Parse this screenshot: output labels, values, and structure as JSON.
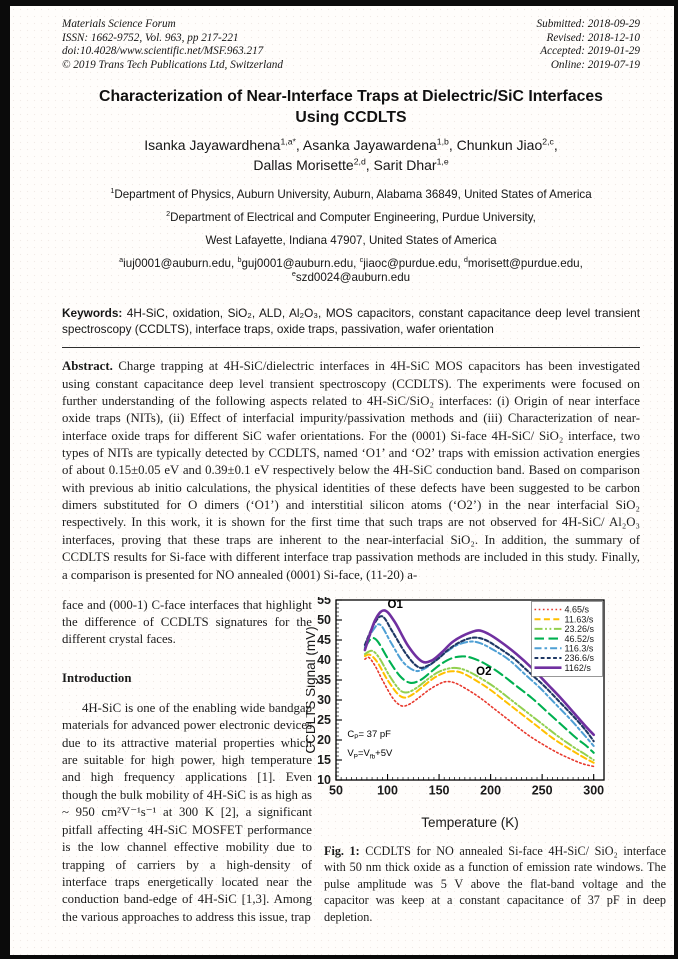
{
  "header": {
    "left_lines": [
      "Materials Science Forum",
      "ISSN: 1662-9752, Vol. 963, pp 217-221",
      "doi:10.4028/www.scientific.net/MSF.963.217",
      "© 2019 Trans Tech Publications Ltd, Switzerland"
    ],
    "right_lines": [
      "Submitted: 2018-09-29",
      "Revised: 2018-12-10",
      "Accepted: 2019-01-29",
      "Online: 2019-07-19"
    ]
  },
  "title_line1": "Characterization of Near-Interface Traps at Dielectric/SiC Interfaces",
  "title_line2": "Using CCDLTS",
  "authors_line1": [
    {
      "t": "Isanka Jayawardhena"
    },
    {
      "s": "1,a*"
    },
    {
      "t": ", Asanka Jayawardena"
    },
    {
      "s": "1,b"
    },
    {
      "t": ", Chunkun Jiao"
    },
    {
      "s": "2,c"
    },
    {
      "t": ","
    }
  ],
  "authors_line2": [
    {
      "t": "Dallas Morisette"
    },
    {
      "s": "2,d"
    },
    {
      "t": ", Sarit Dhar"
    },
    {
      "s": "1,e"
    }
  ],
  "affiliations": {
    "line1": [
      {
        "s": "1"
      },
      {
        "t": "Department of Physics, Auburn University, Auburn, Alabama 36849, United States of America"
      }
    ],
    "line2": [
      {
        "s": "2"
      },
      {
        "t": "Department of Electrical and Computer Engineering, Purdue University,"
      }
    ],
    "line3": [
      {
        "t": "West Lafayette, Indiana 47907, United States of America"
      }
    ]
  },
  "emails_line1": [
    {
      "s": "a"
    },
    {
      "t": "iuj0001@auburn.edu, "
    },
    {
      "s": "b"
    },
    {
      "t": "guj0001@auburn.edu, "
    },
    {
      "s": "c"
    },
    {
      "t": "jiaoc@purdue.edu, "
    },
    {
      "s": "d"
    },
    {
      "t": "morisett@purdue.edu,"
    }
  ],
  "emails_line2": [
    {
      "s": "e"
    },
    {
      "t": "szd0024@auburn.edu"
    }
  ],
  "keywords": {
    "label": "Keywords:",
    "text": " 4H-SiC, oxidation, SiO₂, ALD, Al₂O₃, MOS capacitors, constant capacitance deep level transient spectroscopy (CCDLTS), interface traps, oxide traps, passivation, wafer orientation"
  },
  "abstract": {
    "label": "Abstract.",
    "text": " Charge trapping at 4H-SiC/dielectric interfaces in 4H-SiC MOS capacitors has been investigated using constant capacitance deep level transient spectroscopy (CCDLTS). The experiments were focused on further understanding of the following aspects related to 4H-SiC/SiO₂ interfaces: (i) Origin of near interface oxide traps (NITs), (ii) Effect of interfacial impurity/passivation methods and (iii) Characterization of near-interface oxide traps for different SiC wafer orientations. For the (0001) Si-face 4H-SiC/ SiO₂ interface, two types of NITs are typically detected by CCDLTS, named ‘O1’ and ‘O2’ traps with emission activation energies of about 0.15±0.05 eV and 0.39±0.1 eV respectively below the 4H-SiC conduction band. Based on comparison with previous ab initio calculations, the physical identities of these defects have been suggested to be carbon dimers substituted for O dimers (‘O1’) and interstitial silicon atoms (‘O2’) in the near interfacial SiO₂ respectively. In this work, it is shown for the first time that such traps are not observed for 4H-SiC/ Al₂O₃ interfaces, proving that these traps are inherent to the near-interfacial SiO₂. In addition, the summary of CCDLTS results for Si-face with different interface trap passivation methods are included in this study. Finally, a comparison is presented for NO annealed (0001) Si-face, (11-20) a-"
  },
  "left_column": {
    "continuation": "face and (000-1) C-face interfaces that highlight the difference of CCDLTS signatures for the different crystal faces.",
    "intro_heading": "Introduction",
    "intro_paragraph": "4H-SiC is one of the enabling wide bandgap materials for advanced power electronic devices due to its attractive material properties which are suitable for high power, high temperature and high frequency applications [1]. Even though the bulk mobility of 4H-SiC is as high as ~ 950 cm²V⁻¹s⁻¹ at 300 K [2], a significant pitfall affecting 4H-SiC MOSFET performance is the low channel effective mobility due to trapping of carriers by a high-density of interface traps energetically located near the conduction band-edge of 4H-SiC [1,3]. Among the various approaches to address this issue, trap"
  },
  "figure_caption": {
    "label": "Fig. 1:",
    "text": " CCDLTS for NO annealed Si-face 4H-SiC/ SiO₂ interface with 50 nm thick oxide as a function of emission rate windows. The pulse amplitude was 5 V above the flat-band voltage and the capacitor was keep at a constant capacitance of 37 pF in deep depletion."
  },
  "chart_data": {
    "type": "line",
    "xlabel": "Temperature (K)",
    "ylabel": "CCDLTS Signal (mV)",
    "xlim": [
      50,
      310
    ],
    "ylim": [
      10,
      55
    ],
    "x_major_ticks": [
      50,
      100,
      150,
      200,
      250,
      300
    ],
    "y_major_ticks": [
      10,
      15,
      20,
      25,
      30,
      35,
      40,
      45,
      50,
      55
    ],
    "x_minor_step": 5,
    "y_minor_step": 1,
    "grid": false,
    "legend_position": "top-right",
    "annotations": [
      {
        "label": "O1",
        "T": 100,
        "mV": 53.0,
        "bold": true
      },
      {
        "label": "O2",
        "T": 186,
        "mV": 36.2,
        "bold": true
      },
      {
        "T": 61,
        "mV": 20.8,
        "segments": [
          {
            "t": "C"
          },
          {
            "sub": "P"
          },
          {
            "t": "= 37 pF"
          }
        ]
      },
      {
        "T": 61,
        "mV": 16.0,
        "segments": [
          {
            "t": "V"
          },
          {
            "sub": "P"
          },
          {
            "t": "=V"
          },
          {
            "sub": "fb"
          },
          {
            "t": "+5V"
          }
        ]
      }
    ],
    "series": [
      {
        "name": "4.65/s",
        "color": "#E8392D",
        "style": "dotted",
        "width": 1.6,
        "points": [
          [
            78,
            40.2
          ],
          [
            82,
            40.6
          ],
          [
            88,
            38.5
          ],
          [
            95,
            35.0
          ],
          [
            105,
            30.5
          ],
          [
            113,
            28.6
          ],
          [
            120,
            28.8
          ],
          [
            130,
            30.5
          ],
          [
            140,
            32.5
          ],
          [
            150,
            34.0
          ],
          [
            157,
            34.6
          ],
          [
            165,
            34.3
          ],
          [
            175,
            33.0
          ],
          [
            190,
            30.5
          ],
          [
            205,
            27.5
          ],
          [
            220,
            24.5
          ],
          [
            235,
            21.5
          ],
          [
            250,
            19.0
          ],
          [
            265,
            16.8
          ],
          [
            280,
            15.0
          ],
          [
            290,
            14.0
          ],
          [
            300,
            13.4
          ]
        ]
      },
      {
        "name": "11.63/s",
        "color": "#FFC000",
        "style": "dash-med",
        "width": 2.0,
        "points": [
          [
            78,
            41.0
          ],
          [
            83,
            41.3
          ],
          [
            90,
            39.5
          ],
          [
            100,
            35.0
          ],
          [
            110,
            31.5
          ],
          [
            117,
            30.6
          ],
          [
            125,
            31.5
          ],
          [
            135,
            33.5
          ],
          [
            145,
            35.5
          ],
          [
            155,
            36.8
          ],
          [
            163,
            37.2
          ],
          [
            172,
            36.8
          ],
          [
            185,
            35.0
          ],
          [
            200,
            32.5
          ],
          [
            215,
            29.5
          ],
          [
            230,
            26.5
          ],
          [
            245,
            23.5
          ],
          [
            260,
            20.5
          ],
          [
            275,
            18.0
          ],
          [
            288,
            16.0
          ],
          [
            300,
            14.3
          ]
        ]
      },
      {
        "name": "23.26/s",
        "color": "#92D050",
        "style": "dash-dot-dot",
        "width": 2.0,
        "points": [
          [
            78,
            41.5
          ],
          [
            85,
            42.3
          ],
          [
            92,
            40.5
          ],
          [
            102,
            36.0
          ],
          [
            112,
            32.5
          ],
          [
            119,
            31.9
          ],
          [
            128,
            33.0
          ],
          [
            138,
            35.0
          ],
          [
            148,
            36.8
          ],
          [
            158,
            37.8
          ],
          [
            167,
            38.0
          ],
          [
            177,
            37.3
          ],
          [
            190,
            35.5
          ],
          [
            205,
            33.0
          ],
          [
            220,
            30.0
          ],
          [
            235,
            27.0
          ],
          [
            250,
            24.0
          ],
          [
            265,
            21.0
          ],
          [
            280,
            18.3
          ],
          [
            290,
            16.7
          ],
          [
            300,
            15.0
          ]
        ]
      },
      {
        "name": "46.52/s",
        "color": "#00B050",
        "style": "dash-long",
        "width": 2.1,
        "points": [
          [
            78,
            43.0
          ],
          [
            84,
            45.3
          ],
          [
            90,
            44.8
          ],
          [
            100,
            40.5
          ],
          [
            112,
            36.0
          ],
          [
            122,
            34.3
          ],
          [
            132,
            35.0
          ],
          [
            142,
            37.0
          ],
          [
            152,
            39.0
          ],
          [
            162,
            40.4
          ],
          [
            172,
            40.9
          ],
          [
            182,
            40.5
          ],
          [
            195,
            39.0
          ],
          [
            210,
            36.5
          ],
          [
            225,
            33.5
          ],
          [
            240,
            30.5
          ],
          [
            255,
            27.0
          ],
          [
            270,
            23.5
          ],
          [
            283,
            20.5
          ],
          [
            293,
            18.5
          ],
          [
            300,
            16.8
          ]
        ]
      },
      {
        "name": "116.3/s",
        "color": "#4E9FD4",
        "style": "dash-dot",
        "width": 2.0,
        "points": [
          [
            78,
            43.5
          ],
          [
            86,
            47.5
          ],
          [
            93,
            48.8
          ],
          [
            103,
            44.5
          ],
          [
            115,
            39.5
          ],
          [
            127,
            37.3
          ],
          [
            137,
            38.0
          ],
          [
            147,
            40.0
          ],
          [
            157,
            42.0
          ],
          [
            168,
            43.8
          ],
          [
            180,
            44.6
          ],
          [
            190,
            44.2
          ],
          [
            203,
            42.5
          ],
          [
            218,
            40.0
          ],
          [
            233,
            36.5
          ],
          [
            248,
            33.0
          ],
          [
            263,
            29.0
          ],
          [
            278,
            25.0
          ],
          [
            290,
            21.5
          ],
          [
            300,
            18.5
          ]
        ]
      },
      {
        "name": "236.6/s",
        "color": "#1F3864",
        "style": "dash-short",
        "width": 2.1,
        "points": [
          [
            78,
            43.8
          ],
          [
            87,
            49.0
          ],
          [
            95,
            50.9
          ],
          [
            105,
            47.0
          ],
          [
            118,
            41.5
          ],
          [
            130,
            38.2
          ],
          [
            140,
            38.7
          ],
          [
            150,
            40.5
          ],
          [
            160,
            42.8
          ],
          [
            172,
            44.7
          ],
          [
            184,
            45.6
          ],
          [
            195,
            45.0
          ],
          [
            208,
            43.0
          ],
          [
            222,
            40.5
          ],
          [
            237,
            37.0
          ],
          [
            252,
            33.5
          ],
          [
            267,
            29.5
          ],
          [
            280,
            26.0
          ],
          [
            292,
            22.5
          ],
          [
            300,
            19.7
          ]
        ]
      },
      {
        "name": "1162/s",
        "color": "#7030A0",
        "style": "solid",
        "width": 2.6,
        "points": [
          [
            78,
            42.5
          ],
          [
            88,
            50.0
          ],
          [
            97,
            52.4
          ],
          [
            107,
            49.5
          ],
          [
            120,
            43.5
          ],
          [
            133,
            39.7
          ],
          [
            143,
            39.9
          ],
          [
            153,
            42.0
          ],
          [
            163,
            44.5
          ],
          [
            175,
            46.3
          ],
          [
            188,
            47.4
          ],
          [
            198,
            46.5
          ],
          [
            210,
            44.5
          ],
          [
            225,
            41.5
          ],
          [
            240,
            38.0
          ],
          [
            255,
            34.0
          ],
          [
            268,
            30.5
          ],
          [
            280,
            27.0
          ],
          [
            292,
            23.5
          ],
          [
            300,
            21.3
          ]
        ]
      }
    ]
  }
}
